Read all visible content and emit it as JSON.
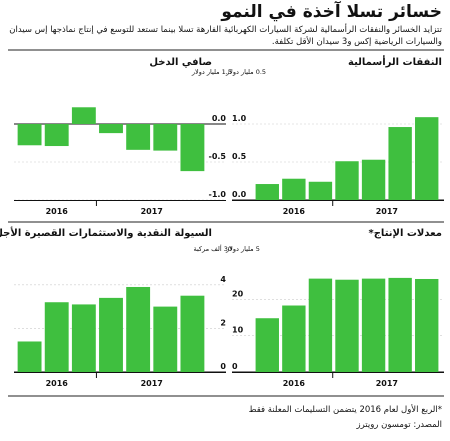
{
  "title": "خسائر تسلا آخذة في النمو",
  "subtitle": "تتزايد الخسائر والنفقات الرأسمالية لشركة السيارات الكهربائية الفارهة تسلا بينما تستعد للتوسع في إنتاج نماذجها إس سيدان والسيارات الرياضية إكس و3 سيدان الأقل تكلفة.",
  "footnote": "*الربع الأول لعام 2016 يتضمن التسليمات المعلنة فقط",
  "source": "المصدر: تومسون رويترز",
  "colors": {
    "bar": "#3fbf3f",
    "axis": "#111111",
    "grid": "#cccccc"
  },
  "chart_data": [
    {
      "id": "capex",
      "type": "bar",
      "title": "النفقات الرأسمالية",
      "unit": "1.5 مليار دولار",
      "ylim": [
        0,
        1.5
      ],
      "yticks": [
        0.0,
        0.5,
        1.0
      ],
      "ytick_labels": [
        "0.0",
        "0.5",
        "1.0"
      ],
      "values": [
        0.21,
        0.28,
        0.24,
        0.51,
        0.53,
        0.96,
        1.09
      ],
      "year_labels": [
        "2016",
        "2017"
      ]
    },
    {
      "id": "net_income",
      "type": "bar",
      "title": "صافي الدخل",
      "unit": "0.5 مليار دولار",
      "ylim": [
        -1.0,
        0.5
      ],
      "yticks": [
        0.0,
        -0.5,
        -1.0
      ],
      "ytick_labels": [
        "0.0",
        "-0.5",
        "-1.0"
      ],
      "values": [
        -0.28,
        -0.29,
        0.22,
        -0.12,
        -0.34,
        -0.35,
        -0.62
      ],
      "year_labels": [
        "2016",
        "2017"
      ]
    },
    {
      "id": "production",
      "type": "bar",
      "title": "معدلات الإنتاج*",
      "unit": "30 ألف مركبة",
      "ylim": [
        0,
        30
      ],
      "yticks": [
        0,
        10,
        20
      ],
      "ytick_labels": [
        "0",
        "10",
        "20"
      ],
      "values": [
        14.8,
        18.3,
        25.7,
        25.4,
        25.7,
        25.9,
        25.6
      ],
      "year_labels": [
        "2016",
        "2017"
      ]
    },
    {
      "id": "cash",
      "type": "bar",
      "title": "السيولة النقدية والاستثمارات القصيرة الأجل",
      "unit": "5 مليار دولار",
      "ylim": [
        0,
        5
      ],
      "yticks": [
        0,
        2,
        4
      ],
      "ytick_labels": [
        "0",
        "2",
        "4"
      ],
      "values": [
        1.4,
        3.2,
        3.1,
        3.4,
        3.9,
        3.0,
        3.5
      ],
      "year_labels": [
        "2016",
        "2017"
      ]
    }
  ]
}
